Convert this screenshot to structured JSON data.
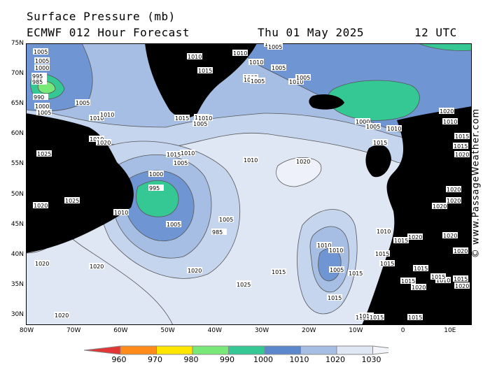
{
  "header": {
    "title": "Surface Pressure (mb)",
    "model": "ECMWF 012 Hour Forecast",
    "valid_date": "Thu 01 May 2025",
    "valid_time": "12 UTC"
  },
  "credit": "© www.PassageWeather.com",
  "map": {
    "lat_labels": [
      "75N",
      "70N",
      "65N",
      "60N",
      "55N",
      "50N",
      "45N",
      "40N",
      "35N",
      "30N"
    ],
    "lon_labels": [
      "80W",
      "70W",
      "60W",
      "50W",
      "40W",
      "30W",
      "20W",
      "10W",
      "0",
      "10E"
    ],
    "colors": {
      "p1030": "#eef1fa",
      "p1020": "#dfe6f4",
      "p1015": "#c6d5ee",
      "p1010": "#a6bee3",
      "p1005": "#6f96d3",
      "p1000": "#5b87cc",
      "p990": "#35c894",
      "p980": "#78e978",
      "land": "#000000"
    },
    "contour_labels": [
      "1005",
      "1005",
      "1000",
      "995",
      "985",
      "990",
      "1000",
      "1005",
      "1005",
      "1010",
      "1010",
      "1010",
      "1015",
      "1010",
      "1005",
      "1005",
      "1010",
      "1005",
      "1005",
      "1005",
      "1005",
      "1010",
      "1005",
      "1010",
      "1010",
      "1005",
      "1005",
      "1015",
      "1015",
      "1010",
      "1010",
      "1020",
      "1010",
      "1005",
      "1000",
      "995",
      "985",
      "1005",
      "1010",
      "1015",
      "1020",
      "1025",
      "1020",
      "1020",
      "1025",
      "1010",
      "1010",
      "1005",
      "1015",
      "1015",
      "1015",
      "1020",
      "1015",
      "1010",
      "1015",
      "1015",
      "1015",
      "1020",
      "1020",
      "1000",
      "1005",
      "1010",
      "1015",
      "1010",
      "1015",
      "1015",
      "1020",
      "1025",
      "1020",
      "1020",
      "1020",
      "1020",
      "1020",
      "1020",
      "1020",
      "1020",
      "1015",
      "1015",
      "1015",
      "1010",
      "1015",
      "1020",
      "1020",
      "1015",
      "1025"
    ]
  },
  "colorbar": {
    "labels": [
      "960",
      "970",
      "980",
      "990",
      "1000",
      "1010",
      "1020",
      "1030"
    ],
    "colors": [
      "#e03636",
      "#ff8c1a",
      "#ffe600",
      "#78e978",
      "#35c894",
      "#5b87cc",
      "#a6bee3",
      "#dfe6f4"
    ]
  }
}
